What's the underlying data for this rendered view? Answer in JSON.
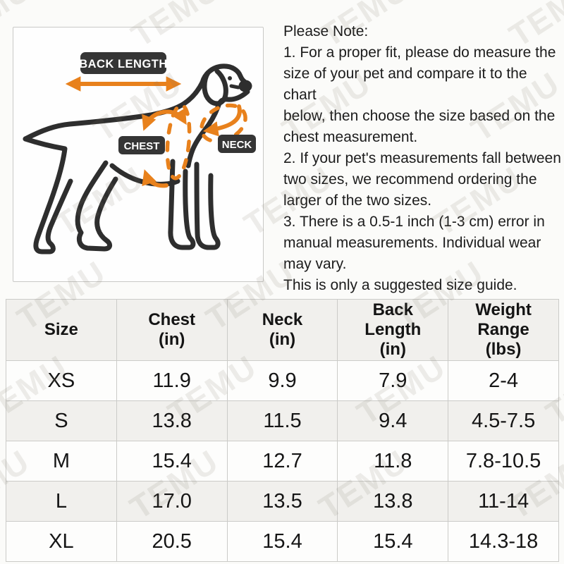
{
  "watermark": {
    "text": "TEMU"
  },
  "diagram": {
    "labels": {
      "back_length": "BACK LENGTH",
      "chest": "CHEST",
      "neck": "NECK"
    }
  },
  "notes": {
    "title": "Please Note:",
    "items": [
      "1. For a proper fit, please do measure the\nsize of your pet and compare it to the chart\nbelow, then choose the size based on the\nchest measurement.",
      "2. If your pet's measurements fall between\ntwo sizes, we recommend ordering the\nlarger of the two sizes.",
      "3. There is a 0.5-1 inch (1-3 cm) error in\nmanual measurements. Individual wear\nmay vary.",
      "This is only a suggested size guide."
    ]
  },
  "size_table": {
    "headers": [
      "Size",
      "Chest\n(in)",
      "Neck\n(in)",
      "Back\nLength\n(in)",
      "Weight\nRange\n(lbs)"
    ],
    "rows": [
      {
        "size": "XS",
        "chest": "11.9",
        "neck": "9.9",
        "back_length": "7.9",
        "weight_range": "2-4"
      },
      {
        "size": "S",
        "chest": "13.8",
        "neck": "11.5",
        "back_length": "9.4",
        "weight_range": "4.5-7.5"
      },
      {
        "size": "M",
        "chest": "15.4",
        "neck": "12.7",
        "back_length": "11.8",
        "weight_range": "7.8-10.5"
      },
      {
        "size": "L",
        "chest": "17.0",
        "neck": "13.5",
        "back_length": "13.8",
        "weight_range": "11-14"
      },
      {
        "size": "XL",
        "chest": "20.5",
        "neck": "15.4",
        "back_length": "15.4",
        "weight_range": "14.3-18"
      }
    ]
  },
  "colors": {
    "accent_orange": "#E8811C",
    "label_dark": "#353535",
    "line_dark": "#2E2E2E"
  }
}
